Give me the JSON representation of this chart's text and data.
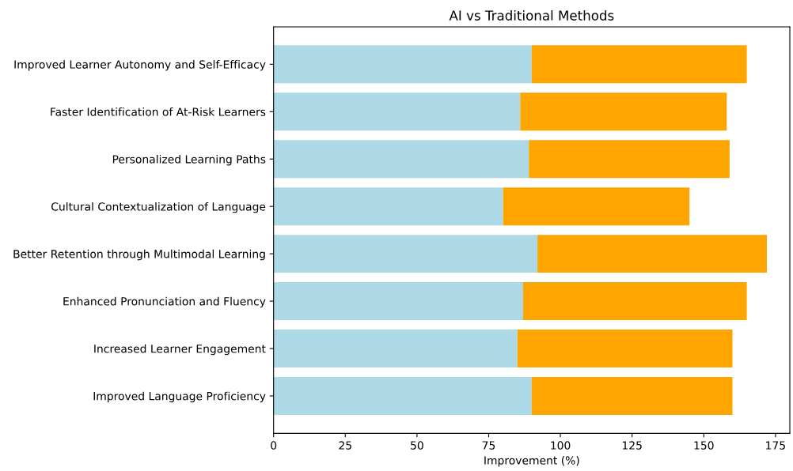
{
  "chart_data": {
    "type": "bar",
    "orientation": "horizontal",
    "stacked": true,
    "title": "AI vs Traditional Methods",
    "xlabel": "Improvement (%)",
    "categories": [
      "Improved Learner Autonomy and Self-Efficacy",
      "Faster Identification of At-Risk Learners",
      "Personalized Learning Paths",
      "Cultural Contextualization of Language",
      "Better Retention through Multimodal Learning",
      "Enhanced Pronunciation and Fluency",
      "Increased Learner Engagement",
      "Improved Language Proficiency"
    ],
    "series": [
      {
        "color": "#add8e6",
        "values": [
          90,
          86,
          89,
          80,
          92,
          87,
          85,
          90
        ]
      },
      {
        "color": "#ffa500",
        "values": [
          75,
          72,
          70,
          65,
          80,
          78,
          75,
          70
        ]
      }
    ],
    "xlim": [
      0,
      180
    ],
    "xticks": [
      0,
      25,
      50,
      75,
      100,
      125,
      150,
      175
    ]
  }
}
